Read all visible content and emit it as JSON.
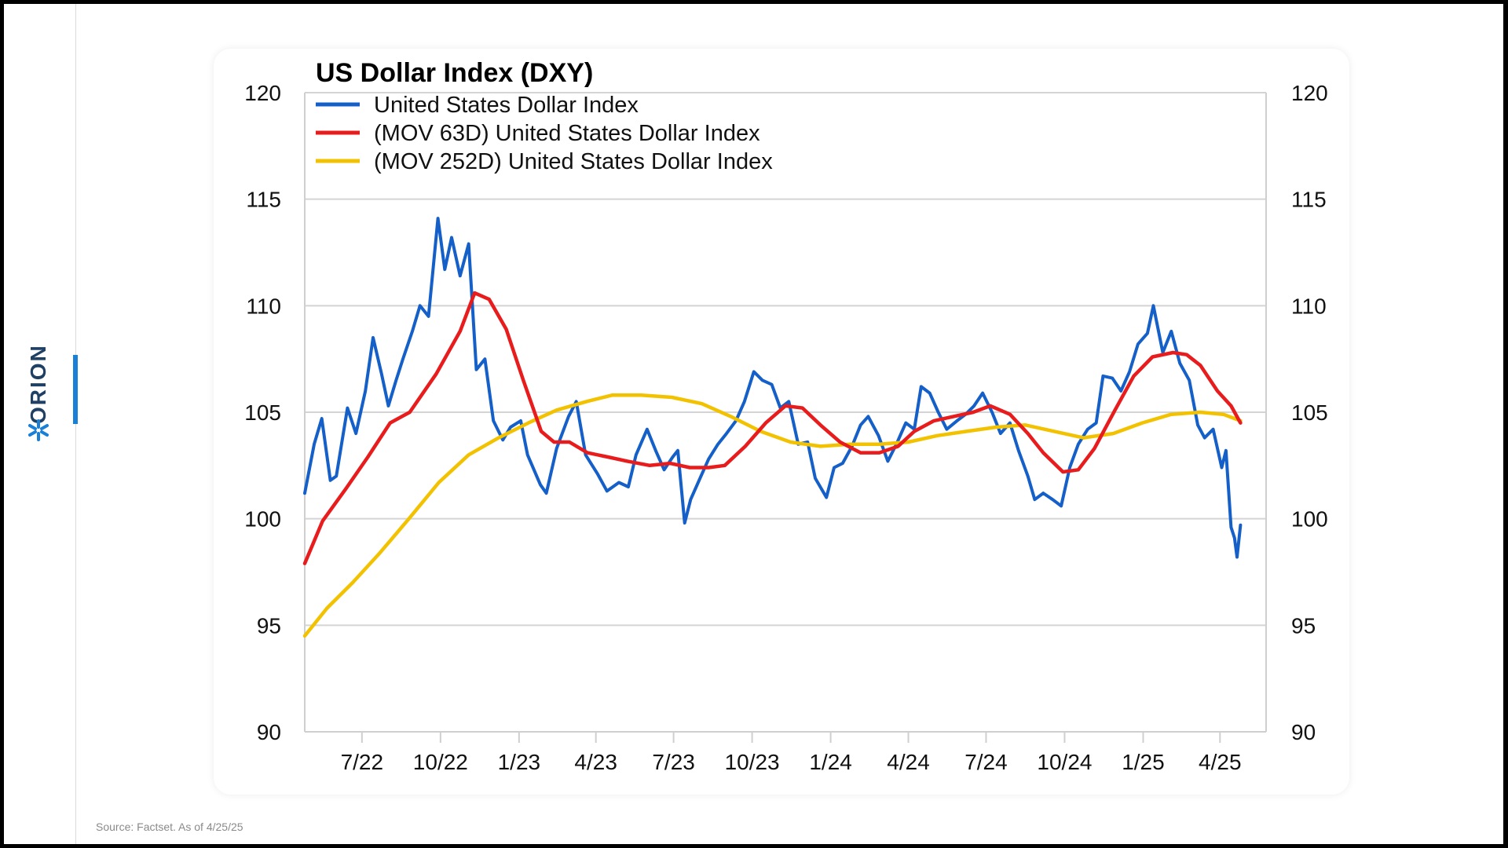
{
  "brand": {
    "name": "ORION",
    "accent_color": "#1a7fd6"
  },
  "source_note": "Source: Factset. As of 4/25/25",
  "chart_data": {
    "type": "line",
    "title": "US Dollar Index (DXY)",
    "xlabel": "",
    "ylabel": "",
    "ylim": [
      90,
      120
    ],
    "yticks": [
      90,
      95,
      100,
      105,
      110,
      115,
      120
    ],
    "dual_y_axis": true,
    "grid": "horizontal",
    "legend_position": "top-left",
    "x_tick_labels": [
      "7/22",
      "10/22",
      "1/23",
      "4/23",
      "7/23",
      "10/23",
      "1/24",
      "4/24",
      "7/24",
      "10/24",
      "1/25",
      "4/25"
    ],
    "x_tick_dates": [
      "2022-07-01",
      "2022-10-01",
      "2023-01-01",
      "2023-04-01",
      "2023-07-01",
      "2023-10-01",
      "2024-01-01",
      "2024-04-01",
      "2024-07-01",
      "2024-10-01",
      "2025-01-01",
      "2025-04-01"
    ],
    "x_range": [
      "2022-04-25",
      "2025-05-25"
    ],
    "series": [
      {
        "name": "United States Dollar Index",
        "color": "#1560c8",
        "points": [
          [
            "2022-04-25",
            101.2
          ],
          [
            "2022-05-06",
            103.5
          ],
          [
            "2022-05-15",
            104.7
          ],
          [
            "2022-05-25",
            101.8
          ],
          [
            "2022-06-01",
            102.0
          ],
          [
            "2022-06-14",
            105.2
          ],
          [
            "2022-06-24",
            104.0
          ],
          [
            "2022-07-05",
            106.0
          ],
          [
            "2022-07-14",
            108.5
          ],
          [
            "2022-07-24",
            106.8
          ],
          [
            "2022-08-01",
            105.3
          ],
          [
            "2022-08-10",
            106.5
          ],
          [
            "2022-08-18",
            107.5
          ],
          [
            "2022-08-29",
            108.8
          ],
          [
            "2022-09-07",
            110.0
          ],
          [
            "2022-09-17",
            109.5
          ],
          [
            "2022-09-28",
            114.1
          ],
          [
            "2022-10-06",
            111.7
          ],
          [
            "2022-10-14",
            113.2
          ],
          [
            "2022-10-24",
            111.4
          ],
          [
            "2022-11-03",
            112.9
          ],
          [
            "2022-11-12",
            107.0
          ],
          [
            "2022-11-22",
            107.5
          ],
          [
            "2022-12-02",
            104.6
          ],
          [
            "2022-12-13",
            103.7
          ],
          [
            "2022-12-22",
            104.3
          ],
          [
            "2023-01-03",
            104.6
          ],
          [
            "2023-01-11",
            103.0
          ],
          [
            "2023-01-26",
            101.6
          ],
          [
            "2023-02-02",
            101.2
          ],
          [
            "2023-02-14",
            103.3
          ],
          [
            "2023-02-28",
            104.8
          ],
          [
            "2023-03-09",
            105.5
          ],
          [
            "2023-03-20",
            103.0
          ],
          [
            "2023-04-03",
            102.1
          ],
          [
            "2023-04-14",
            101.3
          ],
          [
            "2023-04-28",
            101.7
          ],
          [
            "2023-05-09",
            101.5
          ],
          [
            "2023-05-18",
            103.0
          ],
          [
            "2023-05-31",
            104.2
          ],
          [
            "2023-06-10",
            103.2
          ],
          [
            "2023-06-20",
            102.3
          ],
          [
            "2023-06-30",
            102.9
          ],
          [
            "2023-07-06",
            103.2
          ],
          [
            "2023-07-14",
            99.8
          ],
          [
            "2023-07-21",
            100.9
          ],
          [
            "2023-08-01",
            101.9
          ],
          [
            "2023-08-11",
            102.8
          ],
          [
            "2023-08-22",
            103.5
          ],
          [
            "2023-09-01",
            104.0
          ],
          [
            "2023-09-12",
            104.6
          ],
          [
            "2023-09-22",
            105.5
          ],
          [
            "2023-10-03",
            106.9
          ],
          [
            "2023-10-13",
            106.5
          ],
          [
            "2023-10-24",
            106.3
          ],
          [
            "2023-11-03",
            105.2
          ],
          [
            "2023-11-13",
            105.5
          ],
          [
            "2023-11-24",
            103.5
          ],
          [
            "2023-12-05",
            103.6
          ],
          [
            "2023-12-14",
            101.9
          ],
          [
            "2023-12-27",
            101.0
          ],
          [
            "2024-01-05",
            102.4
          ],
          [
            "2024-01-15",
            102.6
          ],
          [
            "2024-01-26",
            103.4
          ],
          [
            "2024-02-05",
            104.4
          ],
          [
            "2024-02-14",
            104.8
          ],
          [
            "2024-02-26",
            103.9
          ],
          [
            "2024-03-08",
            102.7
          ],
          [
            "2024-03-18",
            103.5
          ],
          [
            "2024-03-29",
            104.5
          ],
          [
            "2024-04-08",
            104.2
          ],
          [
            "2024-04-16",
            106.2
          ],
          [
            "2024-04-26",
            105.9
          ],
          [
            "2024-05-06",
            105.0
          ],
          [
            "2024-05-16",
            104.2
          ],
          [
            "2024-05-28",
            104.6
          ],
          [
            "2024-06-07",
            104.9
          ],
          [
            "2024-06-17",
            105.3
          ],
          [
            "2024-06-27",
            105.9
          ],
          [
            "2024-07-08",
            105.0
          ],
          [
            "2024-07-18",
            104.0
          ],
          [
            "2024-07-29",
            104.5
          ],
          [
            "2024-08-08",
            103.2
          ],
          [
            "2024-08-19",
            102.0
          ],
          [
            "2024-08-27",
            100.9
          ],
          [
            "2024-09-06",
            101.2
          ],
          [
            "2024-09-17",
            100.9
          ],
          [
            "2024-09-27",
            100.6
          ],
          [
            "2024-10-07",
            102.4
          ],
          [
            "2024-10-17",
            103.5
          ],
          [
            "2024-10-28",
            104.2
          ],
          [
            "2024-11-07",
            104.5
          ],
          [
            "2024-11-15",
            106.7
          ],
          [
            "2024-11-26",
            106.6
          ],
          [
            "2024-12-06",
            106.0
          ],
          [
            "2024-12-16",
            106.9
          ],
          [
            "2024-12-26",
            108.2
          ],
          [
            "2025-01-06",
            108.7
          ],
          [
            "2025-01-13",
            110.0
          ],
          [
            "2025-01-24",
            107.8
          ],
          [
            "2025-02-03",
            108.8
          ],
          [
            "2025-02-13",
            107.3
          ],
          [
            "2025-02-24",
            106.5
          ],
          [
            "2025-03-06",
            104.4
          ],
          [
            "2025-03-14",
            103.8
          ],
          [
            "2025-03-24",
            104.2
          ],
          [
            "2025-04-03",
            102.4
          ],
          [
            "2025-04-08",
            103.2
          ],
          [
            "2025-04-14",
            99.6
          ],
          [
            "2025-04-18",
            99.1
          ],
          [
            "2025-04-21",
            98.2
          ],
          [
            "2025-04-25",
            99.7
          ]
        ]
      },
      {
        "name": "(MOV 63D) United States Dollar Index",
        "color": "#e81c1c",
        "points": [
          [
            "2022-04-25",
            97.9
          ],
          [
            "2022-05-16",
            99.9
          ],
          [
            "2022-06-12",
            101.4
          ],
          [
            "2022-07-08",
            102.9
          ],
          [
            "2022-08-03",
            104.5
          ],
          [
            "2022-08-26",
            105.0
          ],
          [
            "2022-09-26",
            106.8
          ],
          [
            "2022-10-24",
            108.8
          ],
          [
            "2022-11-10",
            110.6
          ],
          [
            "2022-11-27",
            110.3
          ],
          [
            "2022-12-17",
            108.9
          ],
          [
            "2023-01-06",
            106.5
          ],
          [
            "2023-01-27",
            104.1
          ],
          [
            "2023-02-11",
            103.6
          ],
          [
            "2023-03-01",
            103.6
          ],
          [
            "2023-03-22",
            103.1
          ],
          [
            "2023-04-15",
            102.9
          ],
          [
            "2023-05-08",
            102.7
          ],
          [
            "2023-06-03",
            102.5
          ],
          [
            "2023-06-27",
            102.6
          ],
          [
            "2023-07-20",
            102.4
          ],
          [
            "2023-08-11",
            102.4
          ],
          [
            "2023-08-30",
            102.5
          ],
          [
            "2023-09-23",
            103.4
          ],
          [
            "2023-10-17",
            104.5
          ],
          [
            "2023-11-09",
            105.3
          ],
          [
            "2023-11-29",
            105.2
          ],
          [
            "2023-12-20",
            104.4
          ],
          [
            "2024-01-12",
            103.6
          ],
          [
            "2024-02-05",
            103.1
          ],
          [
            "2024-02-27",
            103.1
          ],
          [
            "2024-03-20",
            103.4
          ],
          [
            "2024-04-08",
            104.1
          ],
          [
            "2024-05-01",
            104.6
          ],
          [
            "2024-05-24",
            104.8
          ],
          [
            "2024-06-16",
            105.0
          ],
          [
            "2024-07-06",
            105.3
          ],
          [
            "2024-07-29",
            104.9
          ],
          [
            "2024-08-19",
            104.0
          ],
          [
            "2024-09-06",
            103.1
          ],
          [
            "2024-09-29",
            102.2
          ],
          [
            "2024-10-17",
            102.3
          ],
          [
            "2024-11-05",
            103.3
          ],
          [
            "2024-11-29",
            105.1
          ],
          [
            "2024-12-21",
            106.7
          ],
          [
            "2025-01-12",
            107.6
          ],
          [
            "2025-02-05",
            107.8
          ],
          [
            "2025-02-21",
            107.7
          ],
          [
            "2025-03-09",
            107.2
          ],
          [
            "2025-03-29",
            106.0
          ],
          [
            "2025-04-14",
            105.3
          ],
          [
            "2025-04-25",
            104.5
          ]
        ]
      },
      {
        "name": "(MOV 252D) United States Dollar Index",
        "color": "#f2c200",
        "points": [
          [
            "2022-04-25",
            94.5
          ],
          [
            "2022-05-21",
            95.8
          ],
          [
            "2022-06-20",
            97.0
          ],
          [
            "2022-07-22",
            98.4
          ],
          [
            "2022-08-25",
            100.0
          ],
          [
            "2022-09-29",
            101.7
          ],
          [
            "2022-11-03",
            103.0
          ],
          [
            "2022-12-08",
            103.8
          ],
          [
            "2023-01-12",
            104.5
          ],
          [
            "2023-02-14",
            105.1
          ],
          [
            "2023-03-21",
            105.5
          ],
          [
            "2023-04-20",
            105.8
          ],
          [
            "2023-05-24",
            105.8
          ],
          [
            "2023-06-29",
            105.7
          ],
          [
            "2023-08-03",
            105.4
          ],
          [
            "2023-09-06",
            104.8
          ],
          [
            "2023-10-11",
            104.1
          ],
          [
            "2023-11-15",
            103.6
          ],
          [
            "2023-12-20",
            103.4
          ],
          [
            "2024-01-24",
            103.5
          ],
          [
            "2024-02-27",
            103.5
          ],
          [
            "2024-04-01",
            103.6
          ],
          [
            "2024-05-05",
            103.9
          ],
          [
            "2024-06-08",
            104.1
          ],
          [
            "2024-07-13",
            104.3
          ],
          [
            "2024-08-16",
            104.4
          ],
          [
            "2024-09-19",
            104.1
          ],
          [
            "2024-10-23",
            103.8
          ],
          [
            "2024-11-27",
            104.0
          ],
          [
            "2024-12-31",
            104.5
          ],
          [
            "2025-02-03",
            104.9
          ],
          [
            "2025-03-09",
            105.0
          ],
          [
            "2025-04-05",
            104.9
          ],
          [
            "2025-04-25",
            104.6
          ]
        ]
      }
    ]
  }
}
